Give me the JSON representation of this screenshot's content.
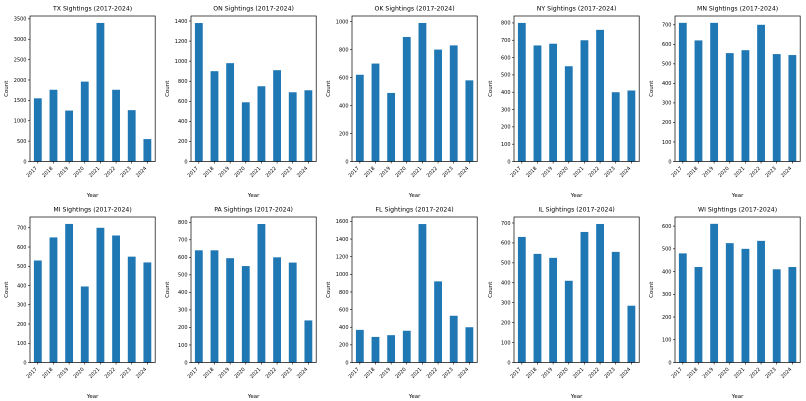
{
  "page": {
    "background": "#ffffff",
    "bar_color": "#1f77b4",
    "axis_color": "#000000"
  },
  "chart_data": [
    {
      "type": "bar",
      "title": "TX Sightings (2017-2024)",
      "xlabel": "Year",
      "ylabel": "Count",
      "categories": [
        "2017",
        "2018",
        "2019",
        "2020",
        "2021",
        "2022",
        "2023",
        "2024"
      ],
      "values": [
        1550,
        1760,
        1250,
        1960,
        3400,
        1760,
        1260,
        550
      ],
      "ylim": [
        0,
        3570
      ],
      "ytick_step": 500,
      "grid": false,
      "legend": "none"
    },
    {
      "type": "bar",
      "title": "ON Sightings (2017-2024)",
      "xlabel": "Year",
      "ylabel": "Count",
      "categories": [
        "2017",
        "2018",
        "2019",
        "2020",
        "2021",
        "2022",
        "2023",
        "2024"
      ],
      "values": [
        1380,
        900,
        980,
        590,
        750,
        910,
        690,
        710
      ],
      "ylim": [
        0,
        1450
      ],
      "ytick_step": 200,
      "grid": false,
      "legend": "none"
    },
    {
      "type": "bar",
      "title": "OK Sightings (2017-2024)",
      "xlabel": "Year",
      "ylabel": "Count",
      "categories": [
        "2017",
        "2018",
        "2019",
        "2020",
        "2021",
        "2022",
        "2023",
        "2024"
      ],
      "values": [
        620,
        700,
        490,
        890,
        990,
        800,
        830,
        580
      ],
      "ylim": [
        0,
        1040
      ],
      "ytick_step": 200,
      "grid": false,
      "legend": "none"
    },
    {
      "type": "bar",
      "title": "NY Sightings (2017-2024)",
      "xlabel": "Year",
      "ylabel": "Count",
      "categories": [
        "2017",
        "2018",
        "2019",
        "2020",
        "2021",
        "2022",
        "2023",
        "2024"
      ],
      "values": [
        800,
        670,
        680,
        550,
        700,
        760,
        400,
        410
      ],
      "ylim": [
        0,
        840
      ],
      "ytick_step": 100,
      "grid": false,
      "legend": "none"
    },
    {
      "type": "bar",
      "title": "MN Sightings (2017-2024)",
      "xlabel": "Year",
      "ylabel": "Count",
      "categories": [
        "2017",
        "2018",
        "2019",
        "2020",
        "2021",
        "2022",
        "2023",
        "2024"
      ],
      "values": [
        710,
        620,
        710,
        555,
        570,
        700,
        550,
        545
      ],
      "ylim": [
        0,
        745
      ],
      "ytick_step": 100,
      "grid": false,
      "legend": "none"
    },
    {
      "type": "bar",
      "title": "MI Sightings (2017-2024)",
      "xlabel": "Year",
      "ylabel": "Count",
      "categories": [
        "2017",
        "2018",
        "2019",
        "2020",
        "2021",
        "2022",
        "2023",
        "2024"
      ],
      "values": [
        530,
        650,
        720,
        395,
        700,
        660,
        550,
        520
      ],
      "ylim": [
        0,
        756
      ],
      "ytick_step": 100,
      "grid": false,
      "legend": "none"
    },
    {
      "type": "bar",
      "title": "PA Sightings (2017-2024)",
      "xlabel": "Year",
      "ylabel": "Count",
      "categories": [
        "2017",
        "2018",
        "2019",
        "2020",
        "2021",
        "2022",
        "2023",
        "2024"
      ],
      "values": [
        640,
        640,
        595,
        550,
        790,
        600,
        570,
        240
      ],
      "ylim": [
        0,
        830
      ],
      "ytick_step": 100,
      "grid": false,
      "legend": "none"
    },
    {
      "type": "bar",
      "title": "FL Sightings (2017-2024)",
      "xlabel": "Year",
      "ylabel": "Count",
      "categories": [
        "2017",
        "2018",
        "2019",
        "2020",
        "2021",
        "2022",
        "2023",
        "2024"
      ],
      "values": [
        370,
        290,
        310,
        360,
        1570,
        920,
        530,
        400
      ],
      "ylim": [
        0,
        1650
      ],
      "ytick_step": 200,
      "grid": false,
      "legend": "none"
    },
    {
      "type": "bar",
      "title": "IL Sightings (2017-2024)",
      "xlabel": "Year",
      "ylabel": "Count",
      "categories": [
        "2017",
        "2018",
        "2019",
        "2020",
        "2021",
        "2022",
        "2023",
        "2024"
      ],
      "values": [
        630,
        545,
        525,
        410,
        655,
        695,
        555,
        285
      ],
      "ylim": [
        0,
        730
      ],
      "ytick_step": 100,
      "grid": false,
      "legend": "none"
    },
    {
      "type": "bar",
      "title": "WI Sightings (2017-2024)",
      "xlabel": "Year",
      "ylabel": "Count",
      "categories": [
        "2017",
        "2018",
        "2019",
        "2020",
        "2021",
        "2022",
        "2023",
        "2024"
      ],
      "values": [
        480,
        420,
        610,
        525,
        500,
        535,
        410,
        420
      ],
      "ylim": [
        0,
        640
      ],
      "ytick_step": 100,
      "grid": false,
      "legend": "none"
    }
  ]
}
